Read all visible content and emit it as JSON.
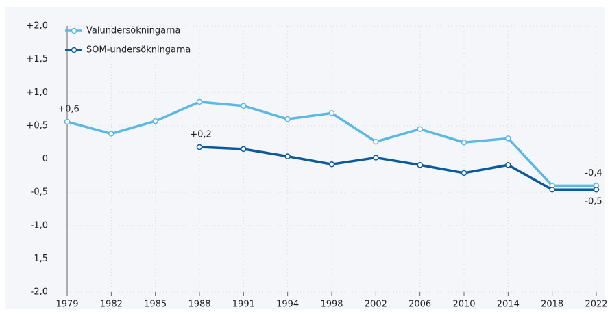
{
  "chart_data": {
    "type": "line",
    "categories": [
      "1979",
      "1982",
      "1985",
      "1988",
      "1991",
      "1994",
      "1998",
      "2002",
      "2006",
      "2010",
      "2014",
      "2018",
      "2022"
    ],
    "series": [
      {
        "name": "Valundersökningarna",
        "color": "#5bb8e6",
        "values": [
          0.56,
          0.38,
          0.57,
          0.86,
          0.8,
          0.6,
          0.69,
          0.26,
          0.45,
          0.25,
          0.31,
          -0.4,
          -0.4
        ],
        "value_labels": [
          "+0,6",
          null,
          null,
          null,
          null,
          null,
          null,
          null,
          null,
          null,
          null,
          null,
          "-0,4"
        ]
      },
      {
        "name": "SOM-undersökningarna",
        "color": "#0b5a9c",
        "values": [
          null,
          null,
          null,
          0.18,
          0.15,
          0.04,
          -0.08,
          0.02,
          -0.09,
          -0.21,
          -0.09,
          -0.46,
          -0.46
        ],
        "value_labels": [
          null,
          null,
          null,
          "+0,2",
          null,
          null,
          null,
          null,
          null,
          null,
          null,
          null,
          "-0,5"
        ]
      }
    ],
    "ylim": [
      -2,
      2
    ],
    "yticks": [
      {
        "value": -2,
        "label": "-2,0"
      },
      {
        "value": -1.5,
        "label": "-1,5"
      },
      {
        "value": -1,
        "label": "-1,0"
      },
      {
        "value": -0.5,
        "label": "-0,5"
      },
      0,
      {
        "value": 0.5,
        "label": "+0,5"
      },
      {
        "value": 1,
        "label": "+1,0"
      },
      {
        "value": 1.5,
        "label": "+1,5"
      },
      {
        "value": 2,
        "label": "+2,0"
      }
    ],
    "grid": true,
    "legend": "top-left"
  }
}
